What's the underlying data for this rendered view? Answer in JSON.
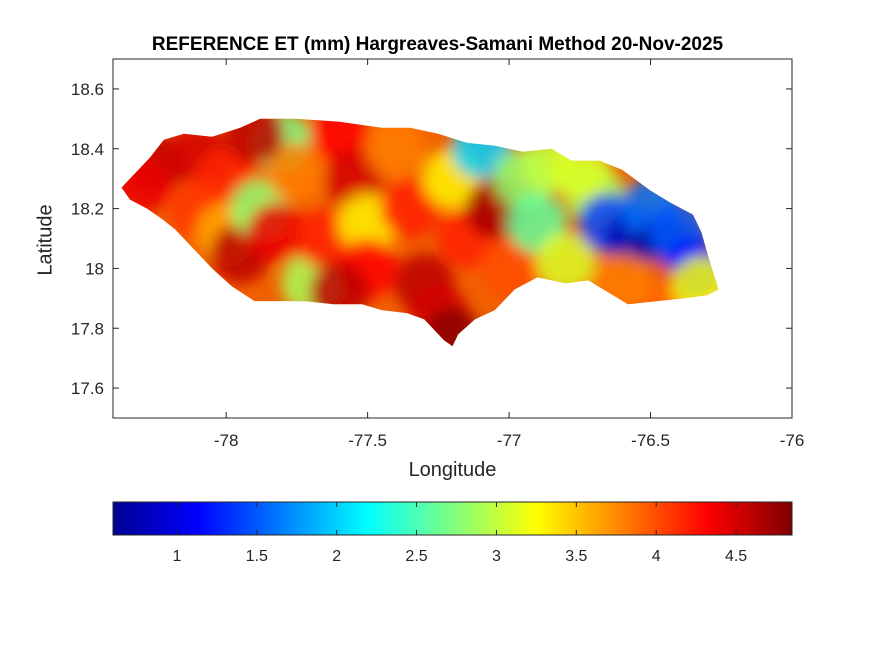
{
  "title": "REFERENCE ET (mm) Hargreaves-Samani Method  20-Nov-2025",
  "axes": {
    "xlabel": "Longitude",
    "ylabel": "Latitude",
    "xlim": [
      -78.4,
      -76
    ],
    "ylim": [
      17.5,
      18.7
    ],
    "xticks": [
      {
        "value": -78,
        "label": "-78"
      },
      {
        "value": -77.5,
        "label": "-77.5"
      },
      {
        "value": -77,
        "label": "-77"
      },
      {
        "value": -76.5,
        "label": "-76.5"
      },
      {
        "value": -76,
        "label": "-76"
      }
    ],
    "yticks": [
      {
        "value": 17.6,
        "label": "17.6"
      },
      {
        "value": 17.8,
        "label": "17.8"
      },
      {
        "value": 18,
        "label": "18"
      },
      {
        "value": 18.2,
        "label": "18.2"
      },
      {
        "value": 18.4,
        "label": "18.4"
      },
      {
        "value": 18.6,
        "label": "18.6"
      }
    ]
  },
  "colorbar": {
    "colormap": "jet",
    "range": [
      0.6,
      4.85
    ],
    "ticks": [
      {
        "value": 1,
        "label": "1"
      },
      {
        "value": 1.5,
        "label": "1.5"
      },
      {
        "value": 2,
        "label": "2"
      },
      {
        "value": 2.5,
        "label": "2.5"
      },
      {
        "value": 3,
        "label": "3"
      },
      {
        "value": 3.5,
        "label": "3.5"
      },
      {
        "value": 4,
        "label": "4"
      },
      {
        "value": 4.5,
        "label": "4.5"
      }
    ]
  },
  "map": {
    "outline": [
      [
        -78.37,
        18.27
      ],
      [
        -78.33,
        18.31
      ],
      [
        -78.27,
        18.37
      ],
      [
        -78.22,
        18.43
      ],
      [
        -78.15,
        18.45
      ],
      [
        -78.05,
        18.44
      ],
      [
        -77.95,
        18.47
      ],
      [
        -77.88,
        18.5
      ],
      [
        -77.75,
        18.5
      ],
      [
        -77.6,
        18.49
      ],
      [
        -77.45,
        18.47
      ],
      [
        -77.35,
        18.47
      ],
      [
        -77.25,
        18.45
      ],
      [
        -77.15,
        18.42
      ],
      [
        -77.05,
        18.41
      ],
      [
        -76.95,
        18.39
      ],
      [
        -76.85,
        18.4
      ],
      [
        -76.78,
        18.36
      ],
      [
        -76.68,
        18.36
      ],
      [
        -76.6,
        18.33
      ],
      [
        -76.5,
        18.26
      ],
      [
        -76.43,
        18.22
      ],
      [
        -76.35,
        18.18
      ],
      [
        -76.32,
        18.12
      ],
      [
        -76.29,
        18.02
      ],
      [
        -76.26,
        17.93
      ],
      [
        -76.3,
        17.91
      ],
      [
        -76.38,
        17.9
      ],
      [
        -76.48,
        17.89
      ],
      [
        -76.58,
        17.88
      ],
      [
        -76.65,
        17.92
      ],
      [
        -76.72,
        17.96
      ],
      [
        -76.8,
        17.95
      ],
      [
        -76.9,
        17.97
      ],
      [
        -76.98,
        17.93
      ],
      [
        -77.05,
        17.86
      ],
      [
        -77.12,
        17.83
      ],
      [
        -77.18,
        17.78
      ],
      [
        -77.2,
        17.74
      ],
      [
        -77.23,
        17.76
      ],
      [
        -77.26,
        17.79
      ],
      [
        -77.3,
        17.83
      ],
      [
        -77.36,
        17.85
      ],
      [
        -77.45,
        17.86
      ],
      [
        -77.52,
        17.88
      ],
      [
        -77.62,
        17.88
      ],
      [
        -77.72,
        17.89
      ],
      [
        -77.82,
        17.89
      ],
      [
        -77.9,
        17.89
      ],
      [
        -77.98,
        17.94
      ],
      [
        -78.05,
        18.0
      ],
      [
        -78.12,
        18.07
      ],
      [
        -78.18,
        18.13
      ],
      [
        -78.22,
        18.16
      ],
      [
        -78.28,
        18.2
      ],
      [
        -78.34,
        18.23
      ]
    ],
    "surface": [
      {
        "lon": -78.25,
        "lat": 18.35,
        "et": 4.6
      },
      {
        "lon": -78.1,
        "lat": 18.38,
        "et": 4.5
      },
      {
        "lon": -78.0,
        "lat": 18.3,
        "et": 4.2
      },
      {
        "lon": -78.1,
        "lat": 18.2,
        "et": 4.1
      },
      {
        "lon": -78.0,
        "lat": 18.12,
        "et": 3.6
      },
      {
        "lon": -77.95,
        "lat": 18.05,
        "et": 4.6
      },
      {
        "lon": -77.88,
        "lat": 18.2,
        "et": 2.8
      },
      {
        "lon": -77.82,
        "lat": 18.12,
        "et": 4.4
      },
      {
        "lon": -77.8,
        "lat": 18.42,
        "et": 2.7
      },
      {
        "lon": -77.75,
        "lat": 18.32,
        "et": 3.8
      },
      {
        "lon": -77.7,
        "lat": 17.95,
        "et": 2.9
      },
      {
        "lon": -77.65,
        "lat": 18.1,
        "et": 4.2
      },
      {
        "lon": -77.6,
        "lat": 18.45,
        "et": 4.3
      },
      {
        "lon": -77.55,
        "lat": 18.3,
        "et": 4.5
      },
      {
        "lon": -77.5,
        "lat": 18.15,
        "et": 3.3
      },
      {
        "lon": -77.5,
        "lat": 18.0,
        "et": 4.3
      },
      {
        "lon": -77.4,
        "lat": 18.4,
        "et": 3.8
      },
      {
        "lon": -77.35,
        "lat": 18.2,
        "et": 4.2
      },
      {
        "lon": -77.3,
        "lat": 17.95,
        "et": 4.6
      },
      {
        "lon": -77.25,
        "lat": 17.85,
        "et": 4.5
      },
      {
        "lon": -77.2,
        "lat": 18.3,
        "et": 3.3
      },
      {
        "lon": -77.15,
        "lat": 18.1,
        "et": 4.2
      },
      {
        "lon": -77.1,
        "lat": 18.4,
        "et": 2.0
      },
      {
        "lon": -77.05,
        "lat": 18.2,
        "et": 4.7
      },
      {
        "lon": -77.0,
        "lat": 18.0,
        "et": 4.0
      },
      {
        "lon": -76.95,
        "lat": 18.3,
        "et": 2.8
      },
      {
        "lon": -76.9,
        "lat": 18.15,
        "et": 2.6
      },
      {
        "lon": -76.85,
        "lat": 18.35,
        "et": 3.0
      },
      {
        "lon": -76.8,
        "lat": 18.02,
        "et": 3.1
      },
      {
        "lon": -76.7,
        "lat": 18.25,
        "et": 2.9
      },
      {
        "lon": -76.65,
        "lat": 18.15,
        "et": 1.4
      },
      {
        "lon": -76.55,
        "lat": 18.1,
        "et": 0.8
      },
      {
        "lon": -76.5,
        "lat": 18.2,
        "et": 1.6
      },
      {
        "lon": -76.45,
        "lat": 18.07,
        "et": 0.7
      },
      {
        "lon": -76.4,
        "lat": 18.12,
        "et": 1.5
      },
      {
        "lon": -76.35,
        "lat": 18.0,
        "et": 1.2
      },
      {
        "lon": -76.5,
        "lat": 17.93,
        "et": 3.9
      },
      {
        "lon": -76.6,
        "lat": 17.95,
        "et": 3.8
      },
      {
        "lon": -76.32,
        "lat": 17.94,
        "et": 3.2
      },
      {
        "lon": -77.2,
        "lat": 17.77,
        "et": 4.8
      },
      {
        "lon": -78.3,
        "lat": 18.28,
        "et": 4.4
      },
      {
        "lon": -77.9,
        "lat": 18.45,
        "et": 4.6
      },
      {
        "lon": -76.75,
        "lat": 18.33,
        "et": 3.1
      },
      {
        "lon": -77.6,
        "lat": 17.92,
        "et": 4.6
      }
    ]
  }
}
